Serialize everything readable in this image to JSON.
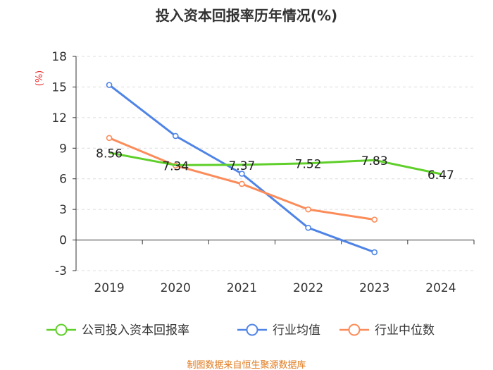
{
  "chart_data": {
    "type": "line",
    "title": "投入资本回报率历年情况(%)",
    "ylabel": "(%)",
    "xlabel": "",
    "ylim": [
      -3,
      18
    ],
    "yticks": [
      -3,
      0,
      3,
      6,
      9,
      12,
      15,
      18
    ],
    "categories": [
      "2019",
      "2020",
      "2021",
      "2022",
      "2023",
      "2024"
    ],
    "series": [
      {
        "name": "公司投入资本回报率",
        "color": "#5fcf2a",
        "values": [
          8.56,
          7.34,
          7.37,
          7.52,
          7.83,
          6.47
        ],
        "labels": [
          "8.56",
          "7.34",
          "7.37",
          "7.52",
          "7.83",
          "6.47"
        ],
        "markers": false,
        "show_labels": true
      },
      {
        "name": "行业均值",
        "color": "#4f84e6",
        "values": [
          15.2,
          10.2,
          6.5,
          1.2,
          -1.2,
          null
        ],
        "markers": true,
        "show_labels": false
      },
      {
        "name": "行业中位数",
        "color": "#fb8c5a",
        "values": [
          10.0,
          7.3,
          5.5,
          3.0,
          2.0,
          null
        ],
        "markers": true,
        "show_labels": false
      }
    ],
    "grid": true,
    "legend": "bottom"
  },
  "source": "制图数据来自恒生聚源数据库"
}
